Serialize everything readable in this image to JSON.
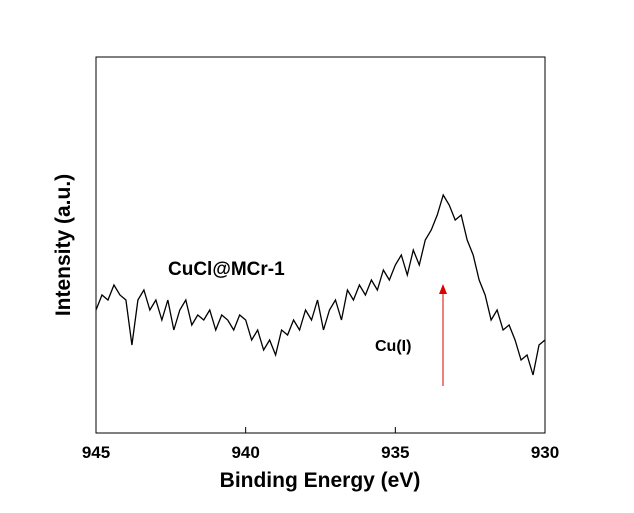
{
  "chart_data": {
    "type": "line",
    "xlabel": "Binding Energy (eV)",
    "ylabel": "Intensity (a.u.)",
    "annotations": [
      "CuCl@MCr-1",
      "Cu(I)"
    ],
    "x": [
      945,
      944.8,
      944.6,
      944.4,
      944.2,
      944,
      943.8,
      943.6,
      943.4,
      943.2,
      943,
      942.8,
      942.6,
      942.4,
      942.2,
      942,
      941.8,
      941.6,
      941.4,
      941.2,
      941,
      940.8,
      940.6,
      940.4,
      940.2,
      940,
      939.8,
      939.6,
      939.4,
      939.2,
      939,
      938.8,
      938.6,
      938.4,
      938.2,
      938,
      937.8,
      937.6,
      937.4,
      937.2,
      937,
      936.8,
      936.6,
      936.4,
      936.2,
      936,
      935.8,
      935.6,
      935.4,
      935.2,
      935,
      934.8,
      934.6,
      934.4,
      934.2,
      934,
      933.8,
      933.6,
      933.4,
      933.2,
      933,
      932.8,
      932.6,
      932.4,
      932.2,
      932,
      931.8,
      931.6,
      931.4,
      931.2,
      931,
      930.8,
      930.6,
      930.4,
      930.2,
      930
    ],
    "series": [
      {
        "color": "#000000",
        "values": [
          123,
          138,
          133,
          148,
          138,
          133,
          88,
          133,
          143,
          123,
          133,
          113,
          133,
          103,
          123,
          133,
          108,
          118,
          113,
          123,
          103,
          118,
          113,
          103,
          118,
          113,
          93,
          103,
          83,
          93,
          78,
          103,
          98,
          113,
          103,
          123,
          113,
          133,
          103,
          123,
          133,
          113,
          143,
          133,
          148,
          138,
          153,
          143,
          163,
          153,
          168,
          178,
          158,
          183,
          168,
          193,
          203,
          218,
          238,
          228,
          213,
          218,
          193,
          178,
          153,
          138,
          113,
          123,
          103,
          108,
          93,
          73,
          78,
          58,
          88,
          93
        ]
      }
    ],
    "xlim": [
      945,
      930
    ],
    "xticks": [
      945,
      940,
      935,
      930
    ],
    "ylim": [
      0,
      376
    ]
  }
}
